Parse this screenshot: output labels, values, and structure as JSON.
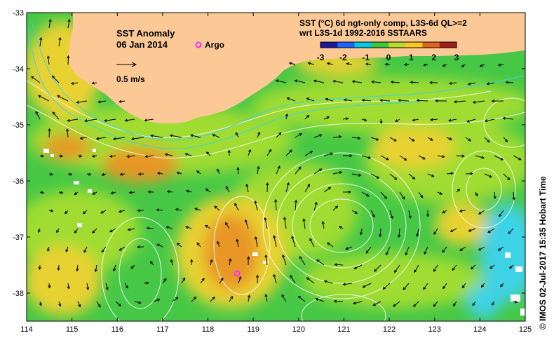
{
  "title": "SST Anomaly",
  "date": "06 Jan 2014",
  "argo_label": "Argo",
  "vector_scale_label": "0.5 m/s",
  "product_line1": "SST (°C) 6d ngt-only comp, L3S-6d QL>=2",
  "product_line2": "wrt L3S-1d 1992-2016 SSTAARS",
  "credit": "© IMOS 02-Jul-2017 15:35 Hobart Time",
  "colorbar": {
    "ticks": [
      "-3",
      "-2",
      "-1",
      "0",
      "1",
      "2",
      "3"
    ],
    "colors": [
      "#1a1a9a",
      "#1e64ff",
      "#00c8e6",
      "#3cc83c",
      "#b4dc28",
      "#ffc81e",
      "#e0641e",
      "#a01e14"
    ]
  },
  "x_ticks": [
    "114",
    "115",
    "116",
    "117",
    "118",
    "119",
    "120",
    "121",
    "122",
    "123",
    "124",
    "125"
  ],
  "y_ticks": [
    "-33",
    "-34",
    "-35",
    "-36",
    "-37",
    "-38"
  ],
  "colors": {
    "land": "#fbc896",
    "sea_green": "#46c846",
    "sea_lime": "#a0dc32",
    "sea_yellow": "#e8d232",
    "sea_orange": "#e89628",
    "cyan": "#3cd2e6",
    "argo": "#ff28ff"
  }
}
